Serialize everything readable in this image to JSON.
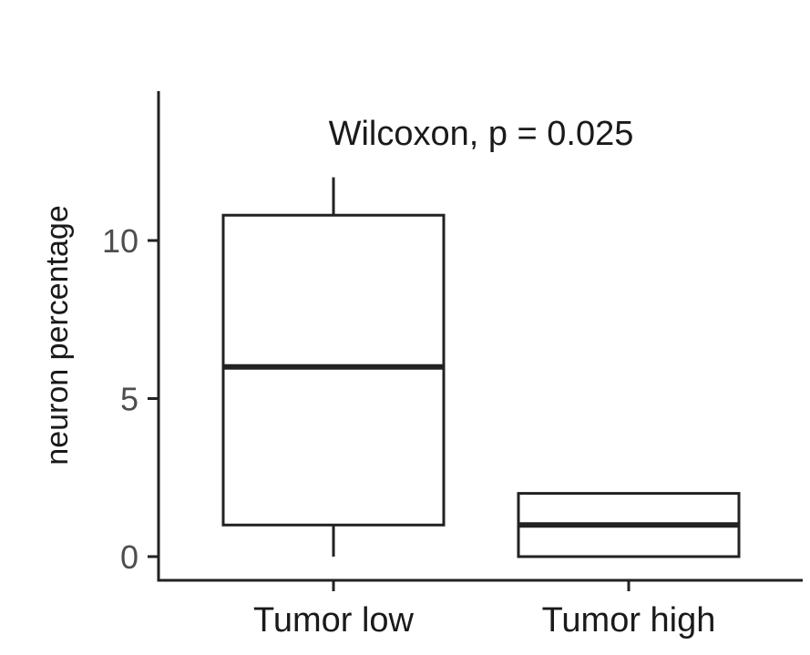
{
  "chart_data": {
    "type": "box",
    "title": "",
    "xlabel": "",
    "ylabel": "neuron percentage",
    "annotation": "Wilcoxon, p = 0.025",
    "categories": [
      "Tumor low",
      "Tumor high"
    ],
    "boxes": [
      {
        "category": "Tumor low",
        "whisker_low": 0,
        "q1": 1,
        "median": 6,
        "q3": 10.8,
        "whisker_high": 12
      },
      {
        "category": "Tumor high",
        "whisker_low": 0,
        "q1": 0,
        "median": 1,
        "q3": 2,
        "whisker_high": 2
      }
    ],
    "yticks": [
      0,
      5,
      10
    ],
    "ytick_labels": [
      "0",
      "5",
      "10"
    ],
    "ylim": [
      -0.7,
      14.5
    ],
    "grid": false,
    "colors": {
      "box_fill": "#ffffff",
      "line": "#222222",
      "tick_text": "#4d4d4d"
    }
  }
}
